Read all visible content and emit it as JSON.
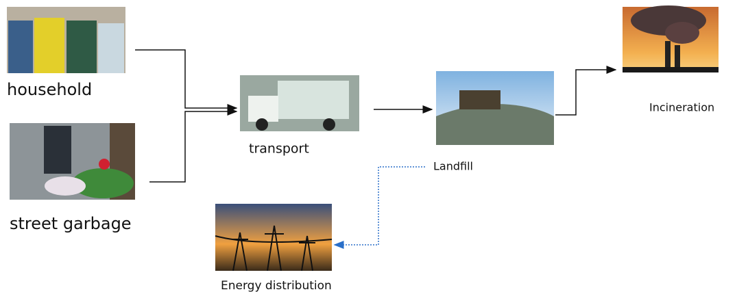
{
  "nodes": [
    {
      "label": "household"
    },
    {
      "label": "street garbage"
    },
    {
      "label": "transport"
    },
    {
      "label": "Landfill"
    },
    {
      "label": "Incineration"
    },
    {
      "label": "Energy distribution"
    }
  ]
}
